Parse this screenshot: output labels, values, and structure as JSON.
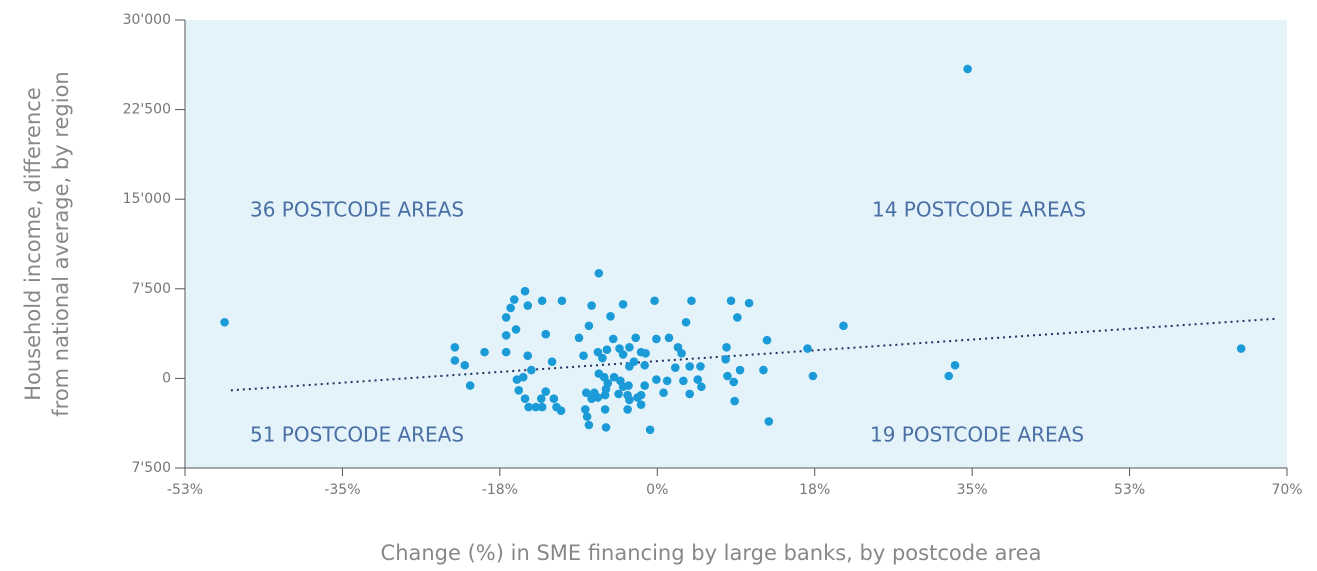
{
  "chart_data": {
    "type": "scatter",
    "ylabel": [
      "Household income, difference",
      "from national average, by region"
    ],
    "xlabel": "Change (%) in SME financing by large banks, by postcode area",
    "annotations": [
      "36 POSTCODE AREAS",
      "14 POSTCODE AREAS",
      "51 POSTCODE AREAS",
      "19 POSTCODE AREAS"
    ],
    "color": "#1a9ad6",
    "xlim": [
      -52.5,
      70
    ],
    "ylim": [
      -7500,
      30000
    ],
    "xticks": [
      {
        "value": -52.5,
        "label": "-53%"
      },
      {
        "value": -35,
        "label": "-35%"
      },
      {
        "value": -17.5,
        "label": "-18%"
      },
      {
        "value": 0,
        "label": "0%"
      },
      {
        "value": 17.5,
        "label": "18%"
      },
      {
        "value": 35,
        "label": "35%"
      },
      {
        "value": 52.5,
        "label": "53%"
      },
      {
        "value": 70,
        "label": "70%"
      }
    ],
    "yticks": [
      {
        "value": -7500,
        "label": "7'500"
      },
      {
        "value": 0,
        "label": "0"
      },
      {
        "value": 7500,
        "label": "7'500"
      },
      {
        "value": 15000,
        "label": "15'000"
      },
      {
        "value": 22500,
        "label": "22'500"
      },
      {
        "value": 30000,
        "label": "30'000"
      }
    ],
    "trendline": {
      "x": [
        -47.4,
        68.9
      ],
      "y": [
        -1000,
        5000
      ]
    },
    "x": [
      -48.1,
      -22.5,
      -22.5,
      -21.4,
      -20.8,
      -19.2,
      -16.8,
      -16.8,
      -16.8,
      -16.3,
      -15.9,
      -15.7,
      -14.7,
      -14.4,
      -14.4,
      -14.0,
      -14.9,
      -15.6,
      -15.4,
      -14.7,
      -14.3,
      -13.5,
      -12.9,
      -12.8,
      -12.4,
      -12.4,
      -12.8,
      -11.7,
      -11.5,
      -11.2,
      -10.7,
      -10.6,
      -8.7,
      -8.2,
      -8.0,
      -7.8,
      -7.6,
      -7.6,
      -7.3,
      -7.0,
      -6.6,
      -6.5,
      -5.9,
      -5.7,
      -5.8,
      -6.5,
      -7.3,
      -7.9,
      -6.6,
      -6.1,
      -5.6,
      -5.8,
      -5.7,
      -5.5,
      -5.2,
      -4.9,
      -4.8,
      -4.3,
      -4.2,
      -3.8,
      -4.1,
      -3.8,
      -3.3,
      -3.1,
      -3.1,
      -3.3,
      -3.2,
      -3.1,
      -3.8,
      -2.6,
      -1.8,
      -2.2,
      -1.8,
      -1.8,
      -1.4,
      -1.3,
      -2.4,
      -1.4,
      -0.8,
      -0.3,
      -0.1,
      -0.1,
      0.7,
      1.1,
      1.3,
      2.0,
      2.3,
      2.7,
      2.9,
      3.2,
      3.6,
      3.8,
      3.6,
      4.5,
      4.8,
      4.9,
      7.7,
      7.6,
      7.8,
      8.2,
      8.5,
      8.9,
      9.2,
      8.6,
      10.2,
      11.8,
      12.2,
      12.4,
      16.7,
      17.3,
      20.7,
      32.4,
      33.1,
      34.5,
      64.9
    ],
    "y": [
      4700,
      2600,
      1500,
      1100,
      -600,
      2200,
      5100,
      3600,
      2200,
      5900,
      6600,
      4100,
      7300,
      6100,
      1900,
      700,
      100,
      -100,
      -1000,
      -1700,
      -2400,
      -2400,
      -1700,
      -2400,
      -1100,
      3700,
      6500,
      1400,
      -1700,
      -2400,
      -2700,
      6500,
      3400,
      1900,
      -2600,
      -3200,
      -3900,
      4400,
      6100,
      -1200,
      2200,
      400,
      100,
      -4100,
      -2600,
      8800,
      -1700,
      -1200,
      -1600,
      1700,
      2400,
      -1400,
      -900,
      -400,
      5200,
      3300,
      100,
      -1300,
      2500,
      2000,
      -200,
      -700,
      -1400,
      2600,
      1000,
      -2600,
      -600,
      -1800,
      6200,
      1400,
      2200,
      -1600,
      -2200,
      -1400,
      1100,
      2100,
      3400,
      -600,
      -4300,
      6500,
      3300,
      -100,
      -1200,
      -200,
      3400,
      900,
      2600,
      2100,
      -200,
      4700,
      1000,
      6500,
      -1300,
      -100,
      1000,
      -700,
      2600,
      1600,
      200,
      6500,
      -300,
      5100,
      700,
      -1900,
      6300,
      700,
      3200,
      -3600,
      2500,
      200,
      4400,
      200,
      1100,
      25900,
      2500
    ]
  }
}
